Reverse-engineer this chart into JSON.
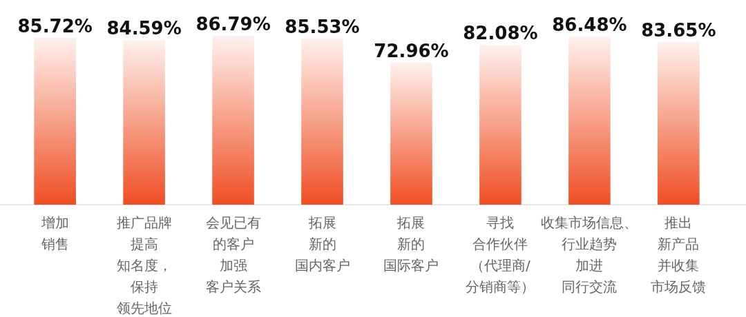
{
  "chart_data": {
    "type": "bar",
    "categories": [
      "增加销售",
      "推广品牌提高知名度，保持领先地位",
      "会见已有的客户加强客户关系",
      "拓展新的国内客户",
      "拓展新的国际客户",
      "寻找合作伙伴（代理商/分销商等）",
      "收集市场信息、行业趋势加进同行交流",
      "推出新产品并收集市场反馈"
    ],
    "values": [
      85.72,
      84.59,
      86.79,
      85.53,
      72.96,
      82.08,
      86.48,
      83.65
    ],
    "value_labels": [
      "85.72%",
      "84.59%",
      "86.79%",
      "85.53%",
      "72.96%",
      "82.08%",
      "86.48%",
      "83.65%"
    ],
    "color": "#f04e23",
    "tick_labels": "x"
  }
}
